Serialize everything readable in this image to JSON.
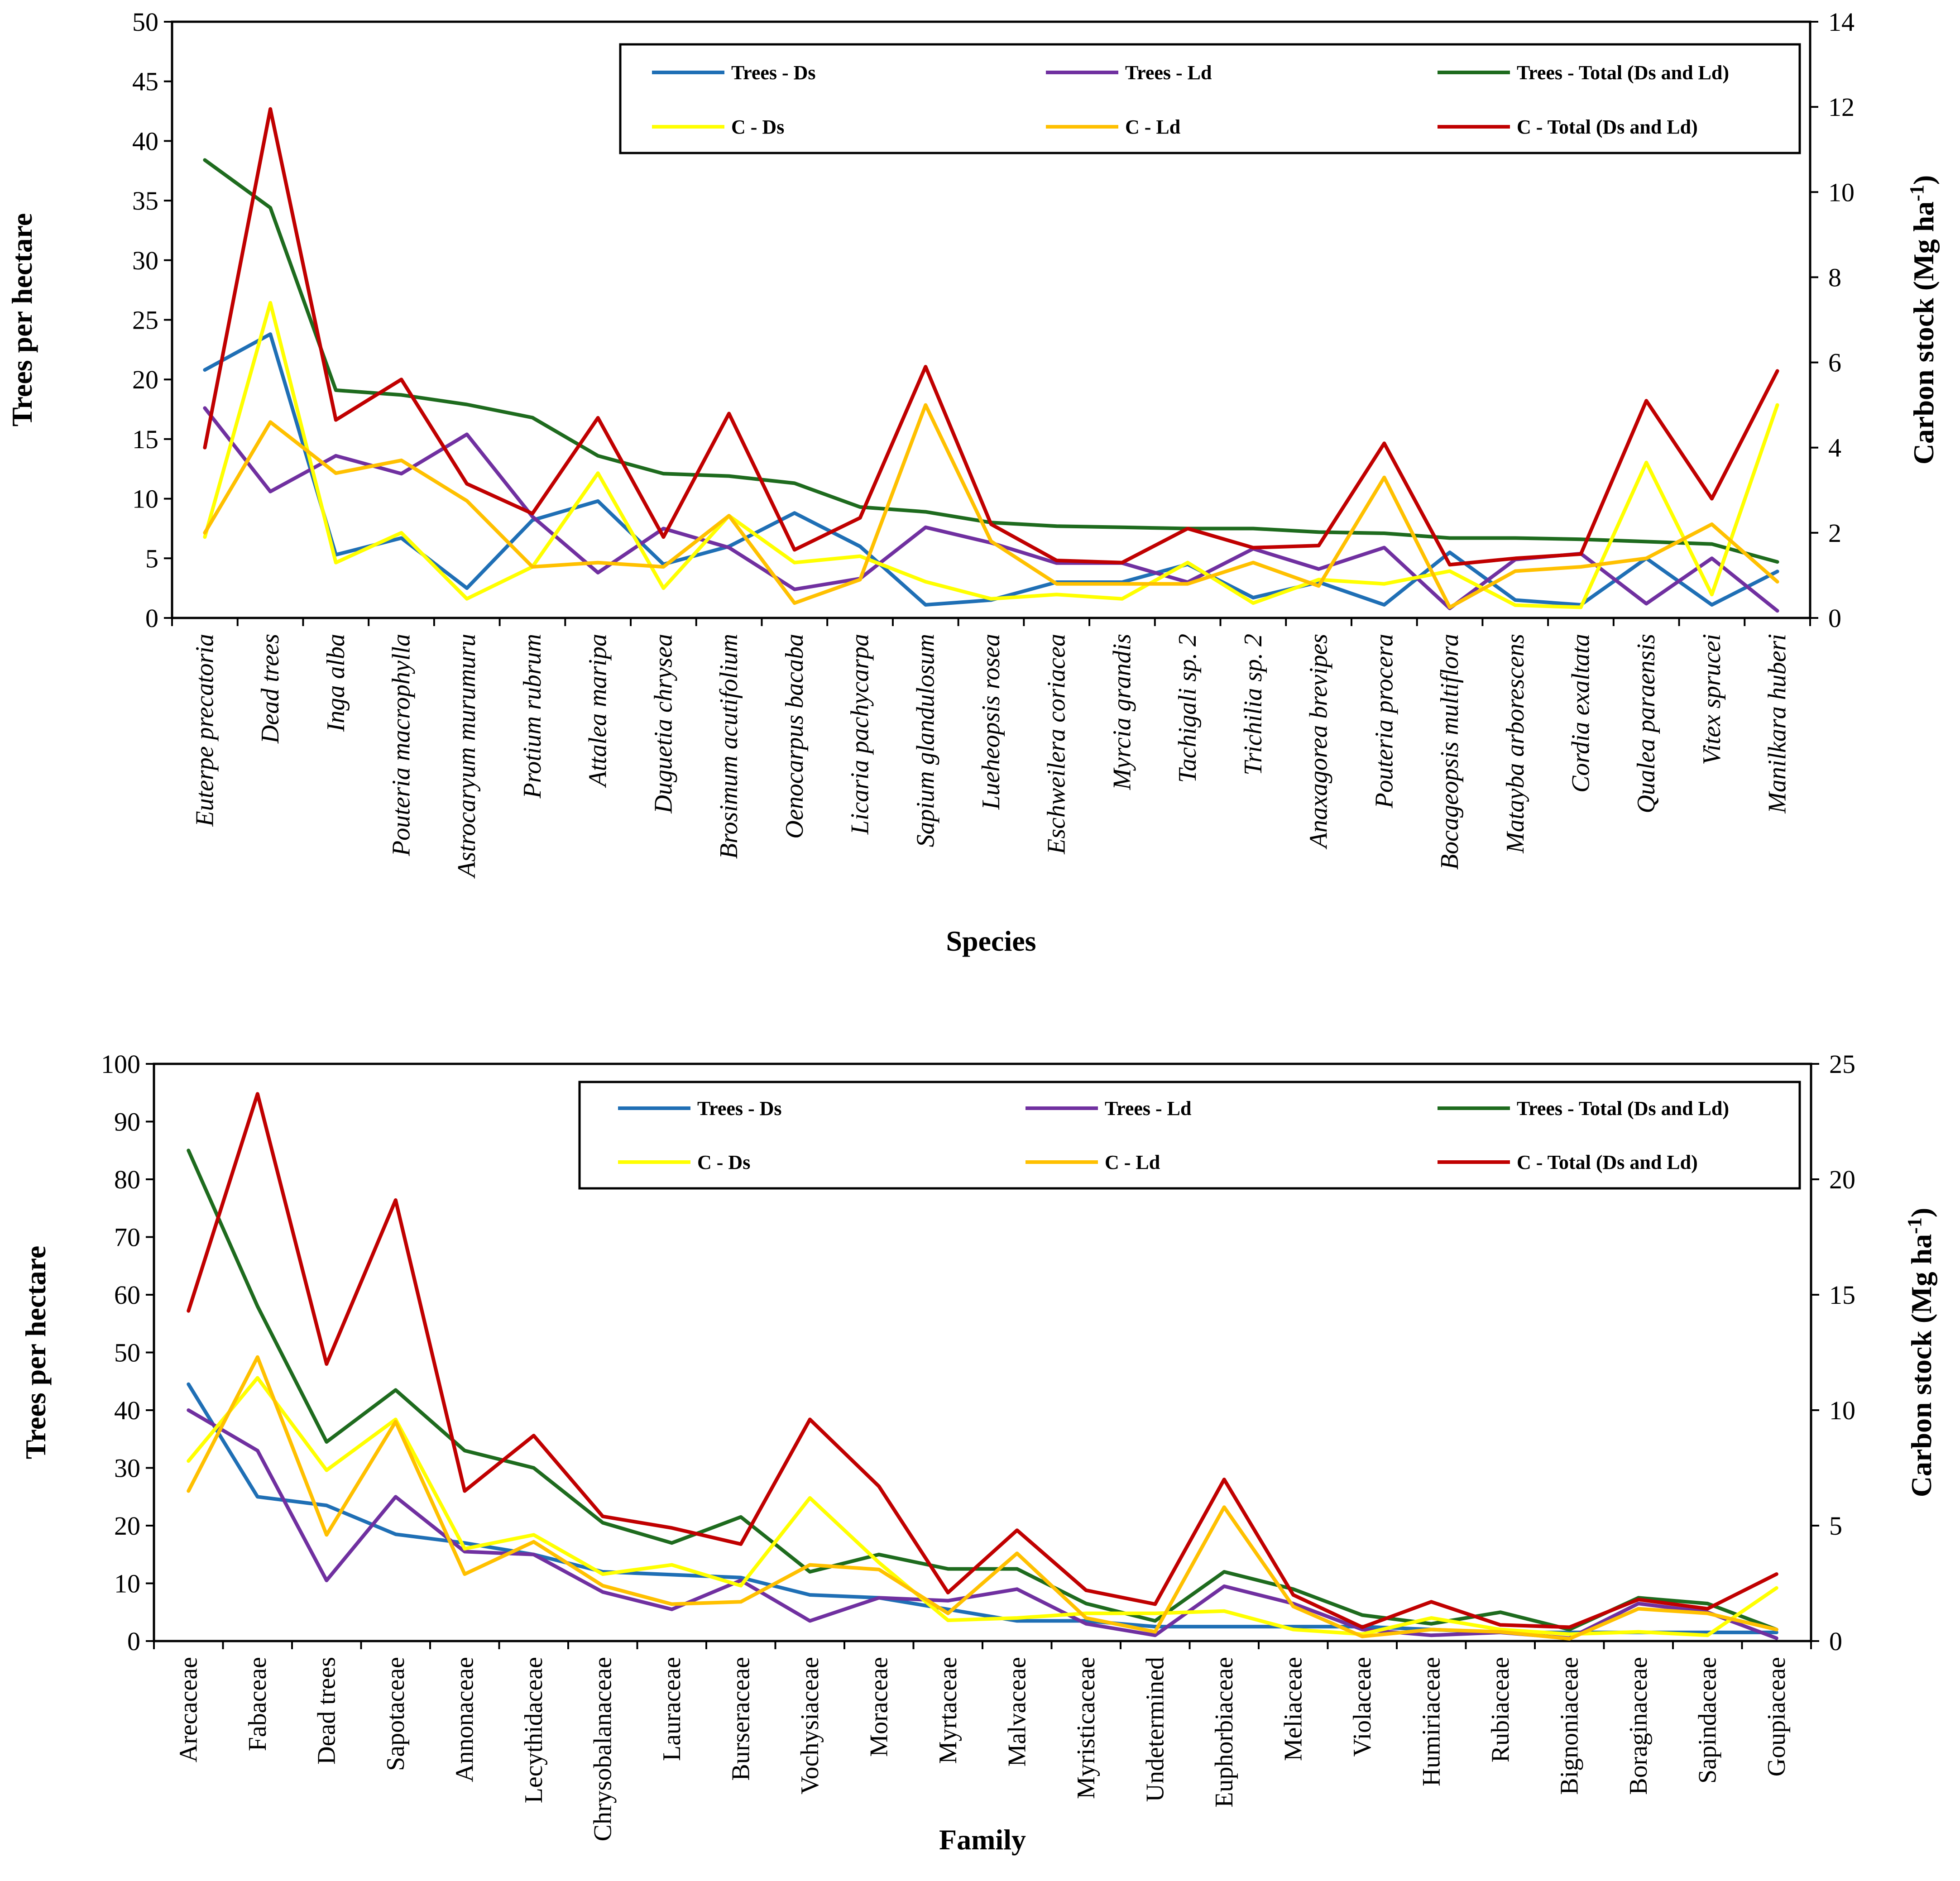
{
  "legend_labels": {
    "trees_ds": "Trees - Ds",
    "trees_ld": "Trees - Ld",
    "trees_total": "Trees - Total (Ds and Ld)",
    "c_ds": "C - Ds",
    "c_ld": "C - Ld",
    "c_total": "C - Total (Ds and Ld)"
  },
  "colors": {
    "trees_ds": "#1f6fb5",
    "trees_ld": "#7030a0",
    "trees_total": "#1e6b1e",
    "c_ds": "#ffff00",
    "c_ld": "#ffc000",
    "c_total": "#c00000"
  },
  "chart_data": [
    {
      "type": "line",
      "xlabel": "Species",
      "ylabel": "Trees per hectare",
      "y2label": "Carbon stock (Mg ha-1)",
      "ylim": [
        0,
        50
      ],
      "y2lim": [
        0,
        14
      ],
      "yticks": [
        0,
        5,
        10,
        15,
        20,
        25,
        30,
        35,
        40,
        45,
        50
      ],
      "y2ticks": [
        0,
        2,
        4,
        6,
        8,
        10,
        12,
        14
      ],
      "category_style": "italic",
      "legend_position": "top-right",
      "categories": [
        "Euterpe precatoria",
        "Dead trees",
        "Inga alba",
        "Pouteria macrophylla",
        "Astrocaryum murumuru",
        "Protium rubrum",
        "Attalea maripa",
        "Duguetia chrysea",
        "Brosimum acutifolium",
        "Oenocarpus bacaba",
        "Licaria pachycarpa",
        "Sapium glandulosum",
        "Lueheopsis rosea",
        "Eschweilera coriacea",
        "Myrcia grandis",
        "Tachigali sp. 2",
        "Trichilia sp. 2",
        "Anaxagorea brevipes",
        "Pouteria procera",
        "Bocageopsis multiflora",
        "Matayba arborescens",
        "Cordia exaltata",
        "Qualea paraensis",
        "Vitex sprucei",
        "Manilkara huberi"
      ],
      "series": [
        {
          "key": "trees_ds",
          "axis": "left",
          "values": [
            20.8,
            23.8,
            5.3,
            6.7,
            2.5,
            8.2,
            9.8,
            4.5,
            6.0,
            8.8,
            6.0,
            1.1,
            1.5,
            3.0,
            3.0,
            4.5,
            1.7,
            3.0,
            1.1,
            5.5,
            1.5,
            1.1,
            5.0,
            1.1,
            3.9
          ]
        },
        {
          "key": "trees_ld",
          "axis": "left",
          "values": [
            17.6,
            10.6,
            13.6,
            12.1,
            15.4,
            8.5,
            3.8,
            7.5,
            5.9,
            2.4,
            3.3,
            7.6,
            6.3,
            4.6,
            4.6,
            3.0,
            5.8,
            4.1,
            5.9,
            0.8,
            4.9,
            5.4,
            1.2,
            5.0,
            0.6
          ]
        },
        {
          "key": "trees_total",
          "axis": "left",
          "values": [
            38.4,
            34.4,
            19.1,
            18.7,
            17.9,
            16.8,
            13.6,
            12.1,
            11.9,
            11.3,
            9.3,
            8.9,
            8.0,
            7.7,
            7.6,
            7.5,
            7.5,
            7.2,
            7.1,
            6.7,
            6.7,
            6.6,
            6.4,
            6.2,
            4.7
          ]
        },
        {
          "key": "c_ds",
          "axis": "right",
          "values": [
            1.9,
            7.4,
            1.3,
            2.0,
            0.45,
            1.2,
            3.4,
            0.7,
            2.4,
            1.3,
            1.45,
            0.85,
            0.45,
            0.55,
            0.45,
            1.3,
            0.35,
            0.9,
            0.8,
            1.1,
            0.3,
            0.25,
            3.65,
            0.55,
            5.0
          ]
        },
        {
          "key": "c_ld",
          "axis": "right",
          "values": [
            2.0,
            4.6,
            3.4,
            3.7,
            2.75,
            1.2,
            1.3,
            1.2,
            2.4,
            0.35,
            0.9,
            5.0,
            1.8,
            0.8,
            0.8,
            0.8,
            1.3,
            0.75,
            3.3,
            0.25,
            1.1,
            1.2,
            1.4,
            2.2,
            0.85
          ]
        },
        {
          "key": "c_total",
          "axis": "right",
          "values": [
            4.0,
            11.95,
            4.65,
            5.6,
            3.15,
            2.45,
            4.7,
            1.9,
            4.8,
            1.6,
            2.35,
            5.9,
            2.2,
            1.35,
            1.3,
            2.1,
            1.65,
            1.7,
            4.1,
            1.25,
            1.4,
            1.5,
            5.1,
            2.8,
            5.8
          ]
        }
      ]
    },
    {
      "type": "line",
      "xlabel": "Family",
      "ylabel": "Trees per hectare",
      "y2label": "Carbon stock (Mg ha-1)",
      "ylim": [
        0,
        100
      ],
      "y2lim": [
        0,
        25
      ],
      "yticks": [
        0,
        10,
        20,
        30,
        40,
        50,
        60,
        70,
        80,
        90,
        100
      ],
      "y2ticks": [
        0,
        5,
        10,
        15,
        20,
        25
      ],
      "category_style": "normal",
      "legend_position": "top-right",
      "categories": [
        "Arecaceae",
        "Fabaceae",
        "Dead trees",
        "Sapotaceae",
        "Annonaceae",
        "Lecythidaceae",
        "Chrysobalanaceae",
        "Lauraceae",
        "Burseraceae",
        "Vochysiaceae",
        "Moraceae",
        "Myrtaceae",
        "Malvaceae",
        "Myristicaceae",
        "Undetermined",
        "Euphorbiaceae",
        "Meliaceae",
        "Violaceae",
        "Humiriaceae",
        "Rubiaceae",
        "Bignoniaceae",
        "Boraginaceae",
        "Sapindaceae",
        "Goupiaceae"
      ],
      "series": [
        {
          "key": "trees_ds",
          "axis": "left",
          "values": [
            44.5,
            25.0,
            23.5,
            18.5,
            17.0,
            15.0,
            12.0,
            11.5,
            11.0,
            8.0,
            7.5,
            5.5,
            3.5,
            3.5,
            2.5,
            2.5,
            2.5,
            2.5,
            2.0,
            1.5,
            1.5,
            1.5,
            1.5,
            1.5
          ]
        },
        {
          "key": "trees_ld",
          "axis": "left",
          "values": [
            40.0,
            33.0,
            10.5,
            25.0,
            15.5,
            15.0,
            8.5,
            5.5,
            10.5,
            3.5,
            7.5,
            7.0,
            9.0,
            3.0,
            1.0,
            9.5,
            6.5,
            2.0,
            1.0,
            1.5,
            0.5,
            6.5,
            5.0,
            0.5
          ]
        },
        {
          "key": "trees_total",
          "axis": "left",
          "values": [
            85.0,
            58.0,
            34.5,
            43.5,
            33.0,
            30.0,
            20.5,
            17.0,
            21.5,
            12.0,
            15.0,
            12.5,
            12.5,
            6.5,
            3.5,
            12.0,
            9.0,
            4.5,
            3.0,
            5.0,
            2.0,
            7.5,
            6.5,
            2.0
          ]
        },
        {
          "key": "c_ds",
          "axis": "right",
          "values": [
            7.8,
            11.4,
            7.4,
            9.6,
            4.0,
            4.6,
            2.9,
            3.3,
            2.4,
            6.2,
            3.4,
            0.9,
            1.0,
            1.2,
            1.2,
            1.3,
            0.5,
            0.3,
            1.0,
            0.5,
            0.3,
            0.4,
            0.25,
            2.3
          ]
        },
        {
          "key": "c_ld",
          "axis": "right",
          "values": [
            6.5,
            12.3,
            4.6,
            9.5,
            2.9,
            4.3,
            2.4,
            1.6,
            1.7,
            3.3,
            3.1,
            1.2,
            3.8,
            1.0,
            0.4,
            5.8,
            1.5,
            0.2,
            0.5,
            0.4,
            0.1,
            1.4,
            1.2,
            0.5
          ]
        },
        {
          "key": "c_total",
          "axis": "right",
          "values": [
            14.3,
            23.7,
            12.0,
            19.1,
            6.5,
            8.9,
            5.4,
            4.9,
            4.2,
            9.6,
            6.7,
            2.1,
            4.8,
            2.2,
            1.6,
            7.0,
            2.0,
            0.6,
            1.7,
            0.7,
            0.6,
            1.8,
            1.4,
            2.9
          ]
        }
      ]
    }
  ]
}
